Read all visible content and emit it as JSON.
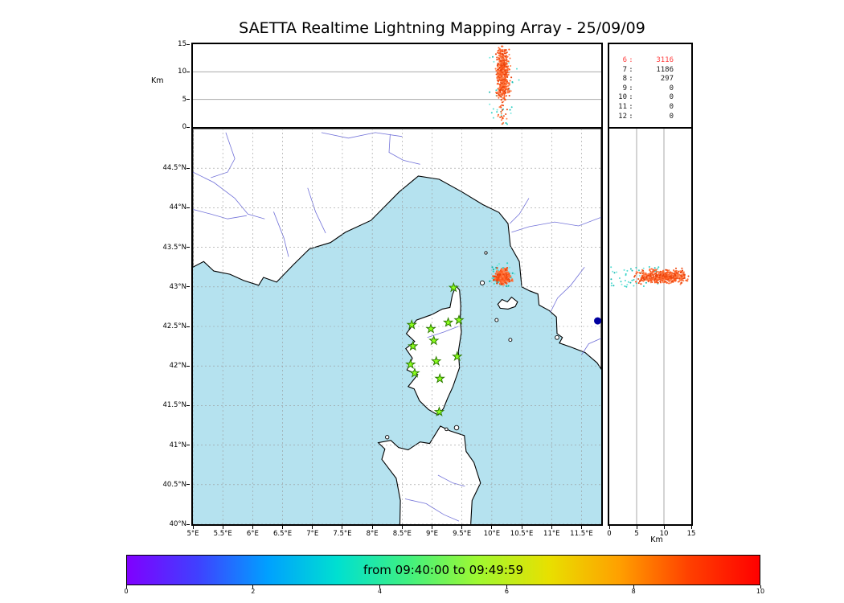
{
  "title": "SAETTA Realtime Lightning Mapping Array - 25/09/09",
  "stats_panel": {
    "highlight_color": "#ff4040",
    "text_color": "#1a1a1a",
    "rows": [
      {
        "label": "6",
        "value": "3116",
        "highlight": true
      },
      {
        "label": "7",
        "value": "1186",
        "highlight": false
      },
      {
        "label": "8",
        "value": "297",
        "highlight": false
      },
      {
        "label": "9",
        "value": "0",
        "highlight": false
      },
      {
        "label": "10",
        "value": "0",
        "highlight": false
      },
      {
        "label": "11",
        "value": "0",
        "highlight": false
      },
      {
        "label": "12",
        "value": "0",
        "highlight": false
      }
    ]
  },
  "alt_lon_panel": {
    "ylabel": "Km",
    "ytick_values": [
      0,
      5,
      10,
      15
    ],
    "ylim": [
      0,
      15
    ],
    "grid_values": [
      5,
      10
    ]
  },
  "alt_lat_panel": {
    "xlabel": "Km",
    "xtick_values": [
      0,
      5,
      10,
      15
    ],
    "xlim": [
      0,
      15
    ],
    "grid_values": [
      5,
      10
    ]
  },
  "map_panel": {
    "lon_tick_values": [
      5,
      5.5,
      6,
      6.5,
      7,
      7.5,
      8,
      8.5,
      9,
      9.5,
      10,
      10.5,
      11,
      11.5
    ],
    "lon_tick_labels": [
      "5°E",
      "5.5°E",
      "6°E",
      "6.5°E",
      "7°E",
      "7.5°E",
      "8°E",
      "8.5°E",
      "9°E",
      "9.5°E",
      "10°E",
      "10.5°E",
      "11°E",
      "11.5°E"
    ],
    "lat_tick_values": [
      40,
      40.5,
      41,
      41.5,
      42,
      42.5,
      43,
      43.5,
      44,
      44.5
    ],
    "lat_tick_labels": [
      "40°N",
      "40.5°N",
      "41°N",
      "41.5°N",
      "42°N",
      "42.5°N",
      "43°N",
      "43.5°N",
      "44°N",
      "44.5°N"
    ],
    "lon_range": [
      5,
      11.83
    ],
    "lat_range": [
      40,
      45
    ],
    "sea_color": "#b5e2ef",
    "land_color": "#ffffff",
    "coast_color": "#000000",
    "river_color": "#7373d9",
    "grid_color": "#999999",
    "lake_color": "#0000a0",
    "geo": {
      "mainland": [
        [
          5.0,
          43.25
        ],
        [
          5.18,
          43.32
        ],
        [
          5.35,
          43.2
        ],
        [
          5.62,
          43.16
        ],
        [
          5.85,
          43.08
        ],
        [
          6.1,
          43.02
        ],
        [
          6.18,
          43.12
        ],
        [
          6.4,
          43.06
        ],
        [
          6.68,
          43.28
        ],
        [
          6.95,
          43.48
        ],
        [
          7.3,
          43.56
        ],
        [
          7.55,
          43.69
        ],
        [
          7.98,
          43.84
        ],
        [
          8.45,
          44.2
        ],
        [
          8.77,
          44.4
        ],
        [
          9.12,
          44.36
        ],
        [
          9.5,
          44.2
        ],
        [
          9.85,
          44.04
        ],
        [
          10.12,
          43.94
        ],
        [
          10.27,
          43.8
        ],
        [
          10.31,
          43.52
        ],
        [
          10.46,
          43.32
        ],
        [
          10.5,
          43.0
        ],
        [
          10.63,
          42.95
        ],
        [
          10.77,
          42.91
        ],
        [
          10.79,
          42.77
        ],
        [
          10.96,
          42.7
        ],
        [
          11.08,
          42.62
        ],
        [
          11.09,
          42.41
        ],
        [
          11.18,
          42.36
        ],
        [
          11.13,
          42.29
        ],
        [
          11.32,
          42.24
        ],
        [
          11.56,
          42.17
        ],
        [
          11.76,
          42.04
        ],
        [
          11.83,
          41.96
        ],
        [
          11.83,
          45.0
        ],
        [
          5.0,
          45.0
        ]
      ],
      "corsica": [
        [
          9.4,
          43.01
        ],
        [
          9.46,
          42.96
        ],
        [
          9.48,
          42.76
        ],
        [
          9.47,
          42.58
        ],
        [
          9.49,
          42.43
        ],
        [
          9.44,
          42.18
        ],
        [
          9.46,
          41.98
        ],
        [
          9.35,
          41.74
        ],
        [
          9.26,
          41.59
        ],
        [
          9.19,
          41.46
        ],
        [
          9.1,
          41.38
        ],
        [
          8.94,
          41.45
        ],
        [
          8.79,
          41.56
        ],
        [
          8.7,
          41.71
        ],
        [
          8.6,
          41.74
        ],
        [
          8.76,
          41.89
        ],
        [
          8.58,
          41.95
        ],
        [
          8.67,
          42.1
        ],
        [
          8.56,
          42.22
        ],
        [
          8.71,
          42.31
        ],
        [
          8.57,
          42.41
        ],
        [
          8.68,
          42.52
        ],
        [
          8.74,
          42.58
        ],
        [
          9.0,
          42.65
        ],
        [
          9.17,
          42.72
        ],
        [
          9.3,
          42.74
        ],
        [
          9.34,
          42.9
        ]
      ],
      "sardinia": [
        [
          8.46,
          39.9
        ],
        [
          8.47,
          40.3
        ],
        [
          8.4,
          40.58
        ],
        [
          8.16,
          40.82
        ],
        [
          8.21,
          40.95
        ],
        [
          8.1,
          41.03
        ],
        [
          8.31,
          41.06
        ],
        [
          8.44,
          40.97
        ],
        [
          8.6,
          40.94
        ],
        [
          8.8,
          41.04
        ],
        [
          8.96,
          41.02
        ],
        [
          9.14,
          41.24
        ],
        [
          9.3,
          41.18
        ],
        [
          9.54,
          41.12
        ],
        [
          9.57,
          40.92
        ],
        [
          9.7,
          40.78
        ],
        [
          9.81,
          40.52
        ],
        [
          9.67,
          40.3
        ],
        [
          9.64,
          39.9
        ]
      ],
      "elba": [
        [
          10.1,
          42.78
        ],
        [
          10.17,
          42.84
        ],
        [
          10.26,
          42.81
        ],
        [
          10.33,
          42.87
        ],
        [
          10.43,
          42.81
        ],
        [
          10.39,
          42.75
        ],
        [
          10.27,
          42.72
        ],
        [
          10.14,
          42.73
        ]
      ],
      "islands": [
        [
          9.84,
          43.05,
          2.6
        ],
        [
          9.9,
          43.43,
          1.7
        ],
        [
          10.08,
          42.58,
          2.0
        ],
        [
          10.31,
          42.33,
          2.0
        ],
        [
          11.09,
          42.36,
          2.4
        ],
        [
          9.41,
          41.22,
          2.8
        ],
        [
          9.24,
          41.2,
          1.8
        ],
        [
          8.25,
          41.1,
          2.2
        ]
      ],
      "rivers": [
        [
          [
            5.0,
            44.45
          ],
          [
            5.35,
            44.32
          ],
          [
            5.7,
            44.12
          ],
          [
            5.92,
            43.92
          ],
          [
            6.2,
            43.86
          ]
        ],
        [
          [
            5.55,
            44.95
          ],
          [
            5.7,
            44.62
          ],
          [
            5.58,
            44.45
          ],
          [
            5.3,
            44.38
          ]
        ],
        [
          [
            5.0,
            43.98
          ],
          [
            5.3,
            43.92
          ],
          [
            5.58,
            43.86
          ],
          [
            5.9,
            43.9
          ]
        ],
        [
          [
            6.92,
            44.25
          ],
          [
            7.05,
            43.95
          ],
          [
            7.22,
            43.68
          ]
        ],
        [
          [
            6.35,
            43.95
          ],
          [
            6.52,
            43.62
          ],
          [
            6.6,
            43.38
          ]
        ],
        [
          [
            7.15,
            44.95
          ],
          [
            7.6,
            44.88
          ],
          [
            8.05,
            44.95
          ],
          [
            8.5,
            44.9
          ]
        ],
        [
          [
            8.3,
            44.93
          ],
          [
            8.28,
            44.7
          ],
          [
            8.52,
            44.6
          ],
          [
            8.8,
            44.55
          ]
        ],
        [
          [
            11.83,
            43.88
          ],
          [
            11.45,
            43.77
          ],
          [
            11.05,
            43.82
          ],
          [
            10.62,
            43.76
          ],
          [
            10.33,
            43.69
          ]
        ],
        [
          [
            10.62,
            44.12
          ],
          [
            10.46,
            43.92
          ],
          [
            10.3,
            43.8
          ]
        ],
        [
          [
            11.55,
            43.25
          ],
          [
            11.32,
            43.02
          ],
          [
            11.1,
            42.86
          ],
          [
            10.98,
            42.68
          ]
        ],
        [
          [
            11.83,
            42.35
          ],
          [
            11.62,
            42.28
          ],
          [
            11.5,
            42.14
          ]
        ],
        [
          [
            8.92,
            42.36
          ],
          [
            9.2,
            42.43
          ],
          [
            9.44,
            42.5
          ]
        ],
        [
          [
            8.55,
            40.32
          ],
          [
            8.9,
            40.26
          ],
          [
            9.2,
            40.12
          ],
          [
            9.45,
            40.04
          ]
        ],
        [
          [
            9.1,
            40.62
          ],
          [
            9.35,
            40.52
          ],
          [
            9.55,
            40.48
          ]
        ]
      ],
      "lake_dot": [
        11.77,
        42.57,
        4.5
      ]
    }
  },
  "colorbar": {
    "label": "from 09:40:00 to 09:49:59",
    "tick_values": [
      0,
      2,
      4,
      6,
      8,
      10
    ],
    "range": [
      0,
      10
    ],
    "gradient": [
      "#8000ff",
      "#4040ff",
      "#00a0ff",
      "#00e0d0",
      "#40f080",
      "#a0f830",
      "#e8e000",
      "#ffa000",
      "#ff4000",
      "#ff0000"
    ]
  },
  "chart_data": {
    "type": "scatter",
    "title": "SAETTA Realtime Lightning Mapping Array - 25/09/09",
    "time_window_label": "from 09:40:00 to 09:49:59",
    "colorbar_scale": {
      "min": 0,
      "max": 10,
      "tick_step": 2
    },
    "source_counts_by_station": [
      {
        "stations": 6,
        "sources": 3116
      },
      {
        "stations": 7,
        "sources": 1186
      },
      {
        "stations": 8,
        "sources": 297
      },
      {
        "stations": 9,
        "sources": 0
      },
      {
        "stations": 10,
        "sources": 0
      },
      {
        "stations": 11,
        "sources": 0
      },
      {
        "stations": 12,
        "sources": 0
      }
    ],
    "map_extent": {
      "lon": [
        5,
        11.83
      ],
      "lat": [
        40,
        45
      ]
    },
    "altitude_axis_km": {
      "min": 0,
      "max": 15,
      "ticks": [
        0,
        5,
        10,
        15
      ]
    },
    "storm_cell": {
      "lon_center": 10.18,
      "lon_spread_deg": 0.055,
      "lat_center": 43.13,
      "lat_spread_deg": 0.042,
      "alt_center_km": 9.3,
      "alt_spread_km": 2.1,
      "n_late_map": 380,
      "n_early_map": 80,
      "n_late_profile": 520,
      "n_early_profile": 50,
      "late_palette": [
        "#ff5a1f",
        "#ff6e35",
        "#f04a10",
        "#ff8550",
        "#e8400a"
      ],
      "early_palette": [
        "#2ed0c4",
        "#52dcd2",
        "#15b8b0",
        "#7ae8de"
      ]
    },
    "stations": [
      [
        9.36,
        42.99
      ],
      [
        8.66,
        42.52
      ],
      [
        8.98,
        42.47
      ],
      [
        9.27,
        42.55
      ],
      [
        9.45,
        42.58
      ],
      [
        9.03,
        42.32
      ],
      [
        8.68,
        42.25
      ],
      [
        9.42,
        42.12
      ],
      [
        9.07,
        42.06
      ],
      [
        8.64,
        42.02
      ],
      [
        8.71,
        41.91
      ],
      [
        9.13,
        41.84
      ],
      [
        9.12,
        41.42
      ]
    ],
    "station_marker": {
      "shape": "star",
      "fill": "#8dff1e",
      "stroke": "#2e7d00"
    }
  }
}
